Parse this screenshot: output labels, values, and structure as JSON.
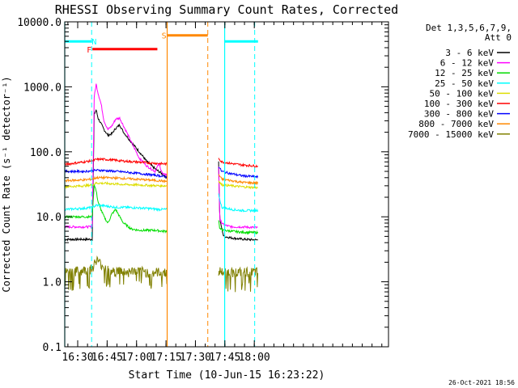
{
  "chart_data": {
    "type": "line",
    "title": "RHESSI Observing Summary Count Rates, Corrected",
    "xlabel": "Start Time (10-Jun-15 16:23:22)",
    "ylabel": "Corrected Count Rate (s⁻¹ detector⁻¹)",
    "yscale": "log",
    "ylim": [
      0.1,
      10000
    ],
    "xlim_min": [
      0,
      165
    ],
    "x_unit": "minutes after 16:23:22",
    "x_ticks": [
      {
        "t": 6.6,
        "label": "16:30"
      },
      {
        "t": 21.6,
        "label": "16:45"
      },
      {
        "t": 36.6,
        "label": "17:00"
      },
      {
        "t": 51.6,
        "label": "17:15"
      },
      {
        "t": 66.6,
        "label": "17:30"
      },
      {
        "t": 81.6,
        "label": "17:45"
      },
      {
        "t": 96.6,
        "label": "18:00"
      }
    ],
    "y_ticks": [
      {
        "v": 10000,
        "label": "10000.0"
      },
      {
        "v": 1000,
        "label": "1000.0"
      },
      {
        "v": 100,
        "label": "100.0"
      },
      {
        "v": 10,
        "label": "10.0"
      },
      {
        "v": 1,
        "label": "1.0"
      },
      {
        "v": 0.1,
        "label": "0.1"
      }
    ],
    "legend_header": [
      "Det 1,3,5,6,7,9,",
      "Att 0"
    ],
    "segments": [
      [
        0,
        52.3
      ],
      [
        78.4,
        98.5
      ]
    ],
    "series": [
      {
        "name": "3 - 6 keV",
        "color": "#000000",
        "x": [
          0,
          14,
          15,
          16,
          17,
          18.5,
          20,
          22,
          24,
          26,
          28,
          30,
          34,
          38,
          42,
          46,
          50,
          52,
          78.4,
          79,
          81,
          84,
          88,
          92,
          98.5
        ],
        "y": [
          4.5,
          4.5,
          380,
          440,
          330,
          270,
          220,
          180,
          190,
          230,
          260,
          200,
          140,
          100,
          70,
          55,
          45,
          40,
          70,
          9,
          5,
          4.8,
          4.6,
          4.5,
          4.4
        ]
      },
      {
        "name": "6 - 12 keV",
        "color": "#ff00ff",
        "x": [
          0,
          14,
          15,
          16,
          17,
          18.5,
          20,
          22,
          24,
          26,
          28,
          30,
          34,
          38,
          42,
          46,
          48,
          50,
          52,
          78.4,
          79,
          81,
          85,
          90,
          98.5
        ],
        "y": [
          7,
          7,
          700,
          1100,
          800,
          550,
          300,
          220,
          250,
          320,
          330,
          250,
          140,
          80,
          60,
          50,
          65,
          45,
          45,
          60,
          9,
          7.5,
          7,
          7,
          6.8
        ]
      },
      {
        "name": "12 - 25 keV",
        "color": "#00dd00",
        "x": [
          0,
          14,
          15,
          16,
          17,
          18,
          20,
          22,
          24,
          26,
          28,
          30,
          34,
          38,
          42,
          46,
          50,
          52,
          78.4,
          79,
          81,
          85,
          90,
          98.5
        ],
        "y": [
          10,
          10,
          32,
          25,
          17,
          14,
          10,
          8,
          11,
          13,
          10,
          8,
          6.5,
          6.2,
          6.2,
          6.2,
          6.0,
          6.0,
          9,
          6.5,
          6.2,
          6.0,
          5.8,
          5.7
        ]
      },
      {
        "name": "25 - 50 keV",
        "color": "#00ffff",
        "x": [
          0,
          10,
          14,
          16,
          18,
          22,
          26,
          30,
          36,
          42,
          48,
          52,
          78.4,
          80,
          85,
          90,
          98.5
        ],
        "y": [
          13,
          13.5,
          14,
          15,
          15,
          14.5,
          14,
          14,
          13.8,
          13.5,
          13,
          13,
          22,
          14,
          13,
          12.5,
          12.5
        ]
      },
      {
        "name": "50 - 100 keV",
        "color": "#dddd00",
        "x": [
          0,
          10,
          14,
          16,
          18,
          22,
          26,
          30,
          36,
          42,
          48,
          52,
          78.4,
          80,
          85,
          90,
          98.5
        ],
        "y": [
          29,
          30,
          31,
          33,
          33,
          32.5,
          32,
          31.5,
          31,
          30.5,
          30,
          30,
          36,
          31,
          30,
          29,
          28
        ]
      },
      {
        "name": "100 - 300 keV",
        "color": "#ff0000",
        "x": [
          0,
          10,
          14,
          16,
          18,
          22,
          26,
          30,
          36,
          42,
          48,
          52,
          78.4,
          80,
          85,
          90,
          98.5
        ],
        "y": [
          64,
          70,
          73,
          76,
          77,
          76,
          74,
          72,
          70,
          68,
          66,
          65,
          80,
          70,
          66,
          63,
          60
        ]
      },
      {
        "name": "300 - 800 keV",
        "color": "#0000ff",
        "x": [
          0,
          10,
          14,
          16,
          18,
          22,
          26,
          30,
          36,
          42,
          48,
          52,
          78.4,
          80,
          85,
          90,
          98.5
        ],
        "y": [
          50,
          50,
          51,
          52,
          52,
          51,
          50,
          49,
          47,
          45,
          43,
          41,
          60,
          50,
          46,
          43,
          41
        ]
      },
      {
        "name": "800 - 7000 keV",
        "color": "#ff8800",
        "x": [
          0,
          10,
          14,
          16,
          18,
          22,
          26,
          30,
          36,
          42,
          48,
          52,
          78.4,
          80,
          85,
          90,
          98.5
        ],
        "y": [
          36,
          37,
          38,
          40,
          40,
          40,
          39.5,
          39,
          38,
          37,
          36,
          35,
          45,
          38,
          36,
          34,
          33
        ]
      },
      {
        "name": "7000 - 15000 keV",
        "color": "#808000",
        "x": [
          0,
          10,
          14,
          16,
          20,
          24,
          28,
          32,
          36,
          42,
          48,
          52,
          78.4,
          80,
          85,
          90,
          98.5
        ],
        "y": [
          1.4,
          1.5,
          1.6,
          2.2,
          1.7,
          1.4,
          1.5,
          1.4,
          1.5,
          1.4,
          1.4,
          1.4,
          1.5,
          1.4,
          1.4,
          1.4,
          1.4
        ]
      }
    ],
    "flags": [
      {
        "code": "N",
        "color": "#00ffff",
        "label_at": 15,
        "label_value": 5000,
        "bars": [
          [
            0,
            13.7,
            5000
          ],
          [
            81.5,
            98.5,
            5000
          ]
        ],
        "boundaries_solid": [
          0,
          81.5
        ],
        "boundaries_dashed": [
          13.7,
          96.8
        ]
      },
      {
        "code": "F",
        "color": "#ff0000",
        "label_at": 12.5,
        "label_value": 3800,
        "bars": [
          [
            14.1,
            47.2,
            3800
          ]
        ]
      },
      {
        "code": "S",
        "color": "#ff8800",
        "label_at": 50.6,
        "label_value": 6200,
        "bars": [
          [
            52.2,
            72.9,
            6200
          ]
        ],
        "boundaries_solid": [
          52.2
        ],
        "boundaries_dashed": [
          72.9
        ]
      }
    ]
  },
  "footer": {
    "timestamp": "26-Oct-2021 18:56"
  }
}
